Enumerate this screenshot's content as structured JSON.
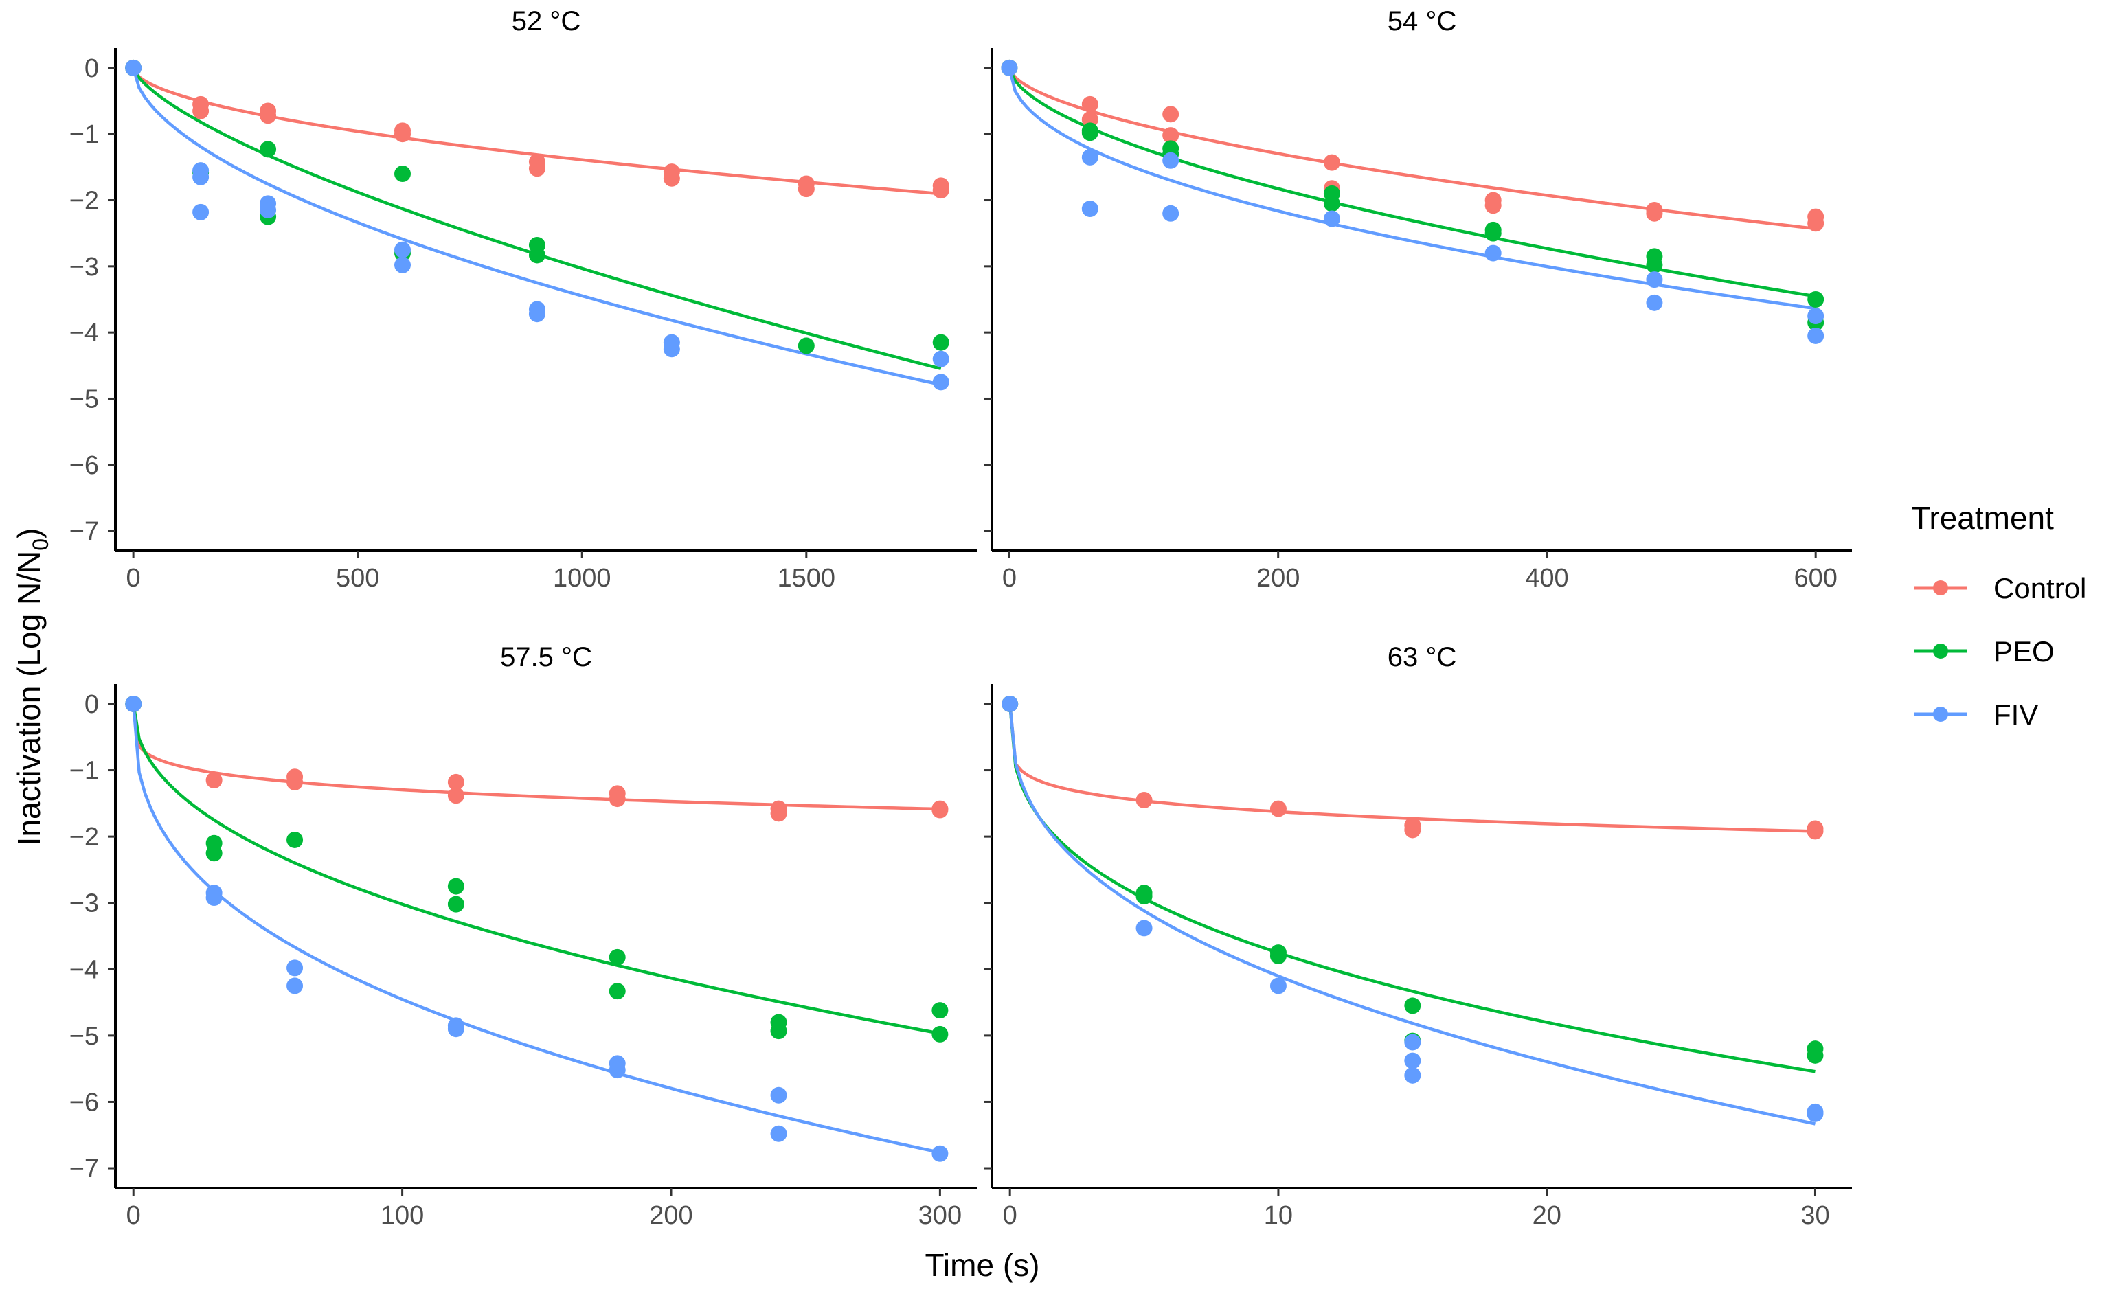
{
  "figure": {
    "ylabel": "Inactivation (Log N/N",
    "ylabel_sub": "0",
    "ylabel_end": ")",
    "xlabel": "Time (s)",
    "legend_title": "Treatment"
  },
  "colors": {
    "Control": "#F8766D",
    "PEO": "#00BA38",
    "FIV": "#619CFF",
    "axis": "#000000",
    "tick_text": "#4d4d4d"
  },
  "legend": [
    {
      "label": "Control",
      "color": "#F8766D"
    },
    {
      "label": "PEO",
      "color": "#00BA38"
    },
    {
      "label": "FIV",
      "color": "#619CFF"
    }
  ],
  "chart_data": [
    {
      "type": "scatter",
      "title": "52 °C",
      "xlim": [
        -40,
        1880
      ],
      "xticks": [
        0,
        500,
        1000,
        1500
      ],
      "ylim": [
        -7.3,
        0.3
      ],
      "yticks": [
        0,
        -1,
        -2,
        -3,
        -4,
        -5,
        -6,
        -7
      ],
      "series": [
        {
          "name": "Control",
          "points": [
            [
              0,
              0
            ],
            [
              150,
              -0.55
            ],
            [
              150,
              -0.65
            ],
            [
              300,
              -0.65
            ],
            [
              300,
              -0.72
            ],
            [
              600,
              -0.95
            ],
            [
              600,
              -1.0
            ],
            [
              900,
              -1.42
            ],
            [
              900,
              -1.52
            ],
            [
              1200,
              -1.57
            ],
            [
              1200,
              -1.67
            ],
            [
              1500,
              -1.75
            ],
            [
              1500,
              -1.83
            ],
            [
              1800,
              -1.78
            ],
            [
              1800,
              -1.85
            ]
          ],
          "fit": {
            "a": 0.0345,
            "b": 0.535
          }
        },
        {
          "name": "PEO",
          "points": [
            [
              0,
              0
            ],
            [
              150,
              -1.58
            ],
            [
              300,
              -1.23
            ],
            [
              300,
              -2.25
            ],
            [
              600,
              -1.6
            ],
            [
              600,
              -2.8
            ],
            [
              900,
              -2.68
            ],
            [
              900,
              -2.83
            ],
            [
              1500,
              -4.2
            ],
            [
              1800,
              -4.15
            ]
          ],
          "fit": {
            "a": 0.0258,
            "b": 0.69
          }
        },
        {
          "name": "FIV",
          "points": [
            [
              0,
              0
            ],
            [
              150,
              -1.55
            ],
            [
              150,
              -1.65
            ],
            [
              150,
              -2.18
            ],
            [
              300,
              -2.05
            ],
            [
              300,
              -2.15
            ],
            [
              600,
              -2.75
            ],
            [
              600,
              -2.98
            ],
            [
              900,
              -3.65
            ],
            [
              900,
              -3.72
            ],
            [
              1200,
              -4.15
            ],
            [
              1200,
              -4.25
            ],
            [
              1800,
              -4.4
            ],
            [
              1800,
              -4.75
            ]
          ],
          "fit": {
            "a": 0.072,
            "b": 0.56
          }
        }
      ]
    },
    {
      "type": "scatter",
      "title": "54 °C",
      "xlim": [
        -13,
        627
      ],
      "xticks": [
        0,
        200,
        400,
        600
      ],
      "ylim": [
        -7.3,
        0.3
      ],
      "yticks": [
        0,
        -1,
        -2,
        -3,
        -4,
        -5,
        -6,
        -7
      ],
      "series": [
        {
          "name": "Control",
          "points": [
            [
              0,
              0
            ],
            [
              60,
              -0.55
            ],
            [
              60,
              -0.78
            ],
            [
              120,
              -0.7
            ],
            [
              120,
              -1.02
            ],
            [
              240,
              -1.43
            ],
            [
              240,
              -1.82
            ],
            [
              360,
              -2.0
            ],
            [
              360,
              -2.08
            ],
            [
              480,
              -2.15
            ],
            [
              480,
              -2.2
            ],
            [
              600,
              -2.25
            ],
            [
              600,
              -2.35
            ]
          ],
          "fit": {
            "a": 0.0622,
            "b": 0.573
          }
        },
        {
          "name": "PEO",
          "points": [
            [
              0,
              0
            ],
            [
              60,
              -0.95
            ],
            [
              60,
              -0.98
            ],
            [
              120,
              -1.22
            ],
            [
              120,
              -1.3
            ],
            [
              240,
              -1.9
            ],
            [
              240,
              -2.05
            ],
            [
              360,
              -2.45
            ],
            [
              360,
              -2.5
            ],
            [
              480,
              -2.85
            ],
            [
              480,
              -2.98
            ],
            [
              600,
              -3.5
            ],
            [
              600,
              -3.85
            ]
          ],
          "fit": {
            "a": 0.0845,
            "b": 0.58
          }
        },
        {
          "name": "FIV",
          "points": [
            [
              0,
              0
            ],
            [
              60,
              -1.35
            ],
            [
              60,
              -2.13
            ],
            [
              120,
              -1.4
            ],
            [
              120,
              -2.2
            ],
            [
              240,
              -2.28
            ],
            [
              360,
              -2.8
            ],
            [
              480,
              -3.2
            ],
            [
              480,
              -3.55
            ],
            [
              600,
              -3.75
            ],
            [
              600,
              -4.05
            ]
          ],
          "fit": {
            "a": 0.1765,
            "b": 0.473
          }
        }
      ]
    },
    {
      "type": "scatter",
      "title": "57.5 °C",
      "xlim": [
        -6.7,
        313.7
      ],
      "xticks": [
        0,
        100,
        200,
        300
      ],
      "ylim": [
        -7.3,
        0.3
      ],
      "yticks": [
        0,
        -1,
        -2,
        -3,
        -4,
        -5,
        -6,
        -7
      ],
      "series": [
        {
          "name": "Control",
          "points": [
            [
              0,
              0
            ],
            [
              30,
              -1.15
            ],
            [
              60,
              -1.1
            ],
            [
              60,
              -1.18
            ],
            [
              120,
              -1.18
            ],
            [
              120,
              -1.38
            ],
            [
              180,
              -1.35
            ],
            [
              180,
              -1.43
            ],
            [
              240,
              -1.58
            ],
            [
              240,
              -1.65
            ],
            [
              300,
              -1.58
            ],
            [
              300,
              -1.6
            ]
          ],
          "fit": {
            "a": 0.555,
            "b": 0.184
          }
        },
        {
          "name": "PEO",
          "points": [
            [
              0,
              0
            ],
            [
              30,
              -2.1
            ],
            [
              30,
              -2.25
            ],
            [
              60,
              -2.05
            ],
            [
              120,
              -2.75
            ],
            [
              120,
              -3.02
            ],
            [
              180,
              -3.82
            ],
            [
              180,
              -4.33
            ],
            [
              240,
              -4.8
            ],
            [
              240,
              -4.93
            ],
            [
              300,
              -4.62
            ],
            [
              300,
              -4.98
            ]
          ],
          "fit": {
            "a": 0.375,
            "b": 0.453
          }
        },
        {
          "name": "FIV",
          "points": [
            [
              0,
              0
            ],
            [
              30,
              -2.85
            ],
            [
              30,
              -2.92
            ],
            [
              60,
              -3.98
            ],
            [
              60,
              -4.25
            ],
            [
              120,
              -4.85
            ],
            [
              120,
              -4.9
            ],
            [
              180,
              -5.42
            ],
            [
              180,
              -5.52
            ],
            [
              240,
              -5.9
            ],
            [
              240,
              -6.48
            ],
            [
              300,
              -6.78
            ]
          ],
          "fit": {
            "a": 0.774,
            "b": 0.38
          }
        }
      ]
    },
    {
      "type": "scatter",
      "title": "63 °C",
      "xlim": [
        -0.67,
        31.37
      ],
      "xticks": [
        0,
        10,
        20,
        30
      ],
      "ylim": [
        -7.3,
        0.3
      ],
      "yticks": [
        0,
        -1,
        -2,
        -3,
        -4,
        -5,
        -6,
        -7
      ],
      "series": [
        {
          "name": "Control",
          "points": [
            [
              0,
              0
            ],
            [
              5,
              -1.45
            ],
            [
              10,
              -1.58
            ],
            [
              15,
              -1.83
            ],
            [
              15,
              -1.9
            ],
            [
              30,
              -1.88
            ],
            [
              30,
              -1.92
            ]
          ],
          "fit": {
            "a": 1.145,
            "b": 0.152
          }
        },
        {
          "name": "PEO",
          "points": [
            [
              0,
              0
            ],
            [
              5,
              -2.85
            ],
            [
              5,
              -2.9
            ],
            [
              10,
              -3.75
            ],
            [
              10,
              -3.8
            ],
            [
              15,
              -4.55
            ],
            [
              15,
              -5.08
            ],
            [
              30,
              -5.2
            ],
            [
              30,
              -5.3
            ]
          ],
          "fit": {
            "a": 1.657,
            "b": 0.355
          }
        },
        {
          "name": "FIV",
          "points": [
            [
              0,
              0
            ],
            [
              5,
              -3.38
            ],
            [
              10,
              -4.25
            ],
            [
              15,
              -5.1
            ],
            [
              15,
              -5.38
            ],
            [
              15,
              -5.6
            ],
            [
              30,
              -6.15
            ],
            [
              30,
              -6.18
            ]
          ],
          "fit": {
            "a": 1.652,
            "b": 0.395
          }
        }
      ]
    }
  ]
}
